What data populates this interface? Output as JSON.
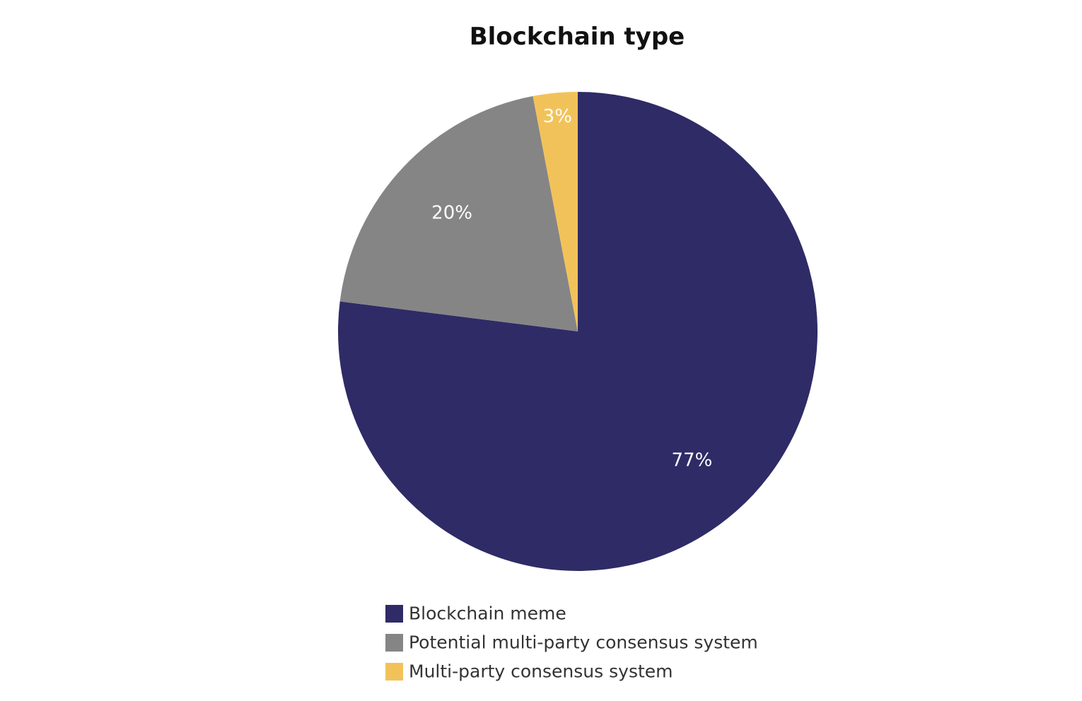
{
  "chart_data": {
    "type": "pie",
    "title": "Blockchain type",
    "start_angle_deg": 0,
    "direction": "clockwise",
    "slices": [
      {
        "label": "Blockchain meme",
        "value": 77,
        "value_label": "77%",
        "color": "#2E2B66"
      },
      {
        "label": "Potential multi-party consensus system",
        "value": 20,
        "value_label": "20%",
        "color": "#858585"
      },
      {
        "label": "Multi-party consensus system",
        "value": 3,
        "value_label": "3%",
        "color": "#F2C25A"
      }
    ],
    "legend": {
      "position": "bottom",
      "entries": [
        "Blockchain meme",
        "Potential multi-party consensus system",
        "Multi-party consensus system"
      ]
    }
  }
}
